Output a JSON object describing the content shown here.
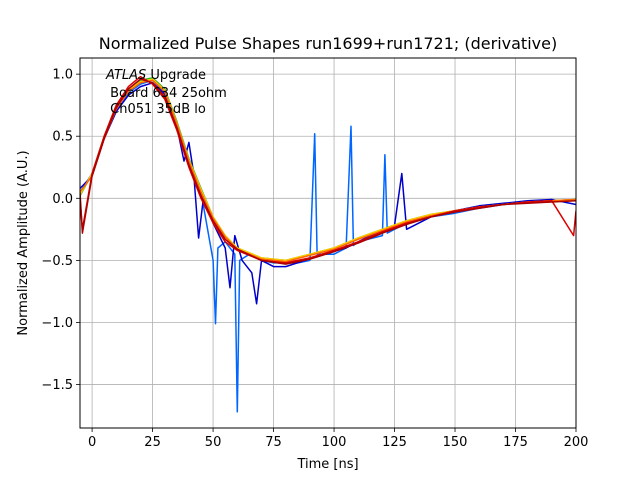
{
  "chart_data": {
    "type": "line",
    "title": "Normalized Pulse Shapes run1699+run1721; (derivative)",
    "xlabel": "Time [ns]",
    "ylabel": "Normalized Amplitude (A.U.)",
    "xlim": [
      -5,
      200
    ],
    "ylim": [
      -1.85,
      1.13
    ],
    "xticks": [
      0,
      25,
      50,
      75,
      100,
      125,
      150,
      175,
      200
    ],
    "yticks": [
      -1.5,
      -1.0,
      -0.5,
      0.0,
      0.5,
      1.0
    ],
    "xtick_labels": [
      "0",
      "25",
      "50",
      "75",
      "100",
      "125",
      "150",
      "175",
      "200"
    ],
    "ytick_labels": [
      "−1.5",
      "−1.0",
      "−0.5",
      "0.0",
      "0.5",
      "1.0"
    ],
    "grid": true,
    "annotation": {
      "line1_italic": "ATLAS",
      "line1_rest": " Upgrade",
      "line2": " Board 634 25ohm",
      "line3": " Ch051 35dB lo"
    },
    "series": [
      {
        "name": "pulse-blue-1",
        "color": "#0066ff",
        "values": [
          [
            -5,
            0.05
          ],
          [
            0,
            0.2
          ],
          [
            5,
            0.5
          ],
          [
            10,
            0.72
          ],
          [
            15,
            0.85
          ],
          [
            20,
            0.92
          ],
          [
            25,
            0.95
          ],
          [
            30,
            0.85
          ],
          [
            35,
            0.6
          ],
          [
            40,
            0.3
          ],
          [
            45,
            0.05
          ],
          [
            50,
            -0.5
          ],
          [
            51,
            -1.01
          ],
          [
            52,
            -0.4
          ],
          [
            55,
            -0.35
          ],
          [
            59,
            -0.45
          ],
          [
            60,
            -1.72
          ],
          [
            61,
            -0.5
          ],
          [
            65,
            -0.45
          ],
          [
            70,
            -0.5
          ],
          [
            75,
            -0.52
          ],
          [
            80,
            -0.52
          ],
          [
            85,
            -0.52
          ],
          [
            90,
            -0.5
          ],
          [
            92,
            0.52
          ],
          [
            93,
            -0.45
          ],
          [
            95,
            -0.45
          ],
          [
            100,
            -0.45
          ],
          [
            105,
            -0.4
          ],
          [
            107,
            0.58
          ],
          [
            108,
            -0.38
          ],
          [
            110,
            -0.35
          ],
          [
            120,
            -0.3
          ],
          [
            121,
            0.35
          ],
          [
            122,
            -0.28
          ],
          [
            125,
            -0.25
          ],
          [
            130,
            -0.2
          ],
          [
            140,
            -0.15
          ],
          [
            150,
            -0.12
          ],
          [
            160,
            -0.08
          ],
          [
            170,
            -0.05
          ],
          [
            180,
            -0.03
          ],
          [
            190,
            -0.02
          ],
          [
            200,
            -0.02
          ]
        ]
      },
      {
        "name": "pulse-dark-blue",
        "color": "#0000cc",
        "values": [
          [
            -5,
            0.08
          ],
          [
            0,
            0.18
          ],
          [
            5,
            0.48
          ],
          [
            10,
            0.7
          ],
          [
            15,
            0.83
          ],
          [
            20,
            0.9
          ],
          [
            25,
            0.93
          ],
          [
            30,
            0.84
          ],
          [
            35,
            0.58
          ],
          [
            38,
            0.3
          ],
          [
            40,
            0.45
          ],
          [
            42,
            0.2
          ],
          [
            44,
            -0.32
          ],
          [
            46,
            0.0
          ],
          [
            50,
            -0.2
          ],
          [
            55,
            -0.4
          ],
          [
            57,
            -0.72
          ],
          [
            59,
            -0.3
          ],
          [
            62,
            -0.5
          ],
          [
            66,
            -0.6
          ],
          [
            68,
            -0.85
          ],
          [
            70,
            -0.5
          ],
          [
            75,
            -0.55
          ],
          [
            80,
            -0.55
          ],
          [
            88,
            -0.5
          ],
          [
            95,
            -0.45
          ],
          [
            105,
            -0.4
          ],
          [
            115,
            -0.3
          ],
          [
            125,
            -0.22
          ],
          [
            128,
            0.2
          ],
          [
            130,
            -0.25
          ],
          [
            140,
            -0.15
          ],
          [
            150,
            -0.1
          ],
          [
            160,
            -0.06
          ],
          [
            170,
            -0.04
          ],
          [
            180,
            -0.02
          ],
          [
            190,
            -0.01
          ],
          [
            200,
            -0.05
          ]
        ]
      },
      {
        "name": "pulse-green",
        "color": "#22aa22",
        "values": [
          [
            -5,
            0.02
          ],
          [
            0,
            0.2
          ],
          [
            5,
            0.5
          ],
          [
            10,
            0.75
          ],
          [
            15,
            0.88
          ],
          [
            20,
            0.95
          ],
          [
            25,
            0.97
          ],
          [
            30,
            0.88
          ],
          [
            35,
            0.62
          ],
          [
            40,
            0.32
          ],
          [
            45,
            0.08
          ],
          [
            50,
            -0.15
          ],
          [
            55,
            -0.3
          ],
          [
            60,
            -0.4
          ],
          [
            70,
            -0.48
          ],
          [
            80,
            -0.5
          ],
          [
            90,
            -0.45
          ],
          [
            100,
            -0.4
          ],
          [
            110,
            -0.32
          ],
          [
            120,
            -0.25
          ],
          [
            130,
            -0.18
          ],
          [
            140,
            -0.13
          ],
          [
            150,
            -0.1
          ],
          [
            160,
            -0.07
          ],
          [
            170,
            -0.05
          ],
          [
            180,
            -0.03
          ],
          [
            190,
            -0.02
          ],
          [
            200,
            -0.01
          ]
        ]
      },
      {
        "name": "pulse-yellow",
        "color": "#ffcc00",
        "values": [
          [
            -5,
            0.03
          ],
          [
            0,
            0.2
          ],
          [
            5,
            0.5
          ],
          [
            10,
            0.74
          ],
          [
            15,
            0.87
          ],
          [
            20,
            0.94
          ],
          [
            25,
            0.96
          ],
          [
            30,
            0.87
          ],
          [
            35,
            0.61
          ],
          [
            40,
            0.31
          ],
          [
            45,
            0.07
          ],
          [
            50,
            -0.15
          ],
          [
            55,
            -0.3
          ],
          [
            60,
            -0.4
          ],
          [
            70,
            -0.48
          ],
          [
            80,
            -0.5
          ],
          [
            90,
            -0.45
          ],
          [
            100,
            -0.4
          ],
          [
            110,
            -0.32
          ],
          [
            120,
            -0.25
          ],
          [
            130,
            -0.18
          ],
          [
            140,
            -0.13
          ],
          [
            150,
            -0.1
          ],
          [
            160,
            -0.07
          ],
          [
            170,
            -0.05
          ],
          [
            180,
            -0.03
          ],
          [
            190,
            -0.02
          ],
          [
            200,
            -0.01
          ]
        ]
      },
      {
        "name": "pulse-orange",
        "color": "#ff6600",
        "values": [
          [
            -5,
            0.05
          ],
          [
            0,
            0.18
          ],
          [
            5,
            0.48
          ],
          [
            10,
            0.72
          ],
          [
            15,
            0.86
          ],
          [
            20,
            0.93
          ],
          [
            25,
            0.95
          ],
          [
            30,
            0.86
          ],
          [
            35,
            0.6
          ],
          [
            40,
            0.3
          ],
          [
            45,
            0.05
          ],
          [
            50,
            -0.16
          ],
          [
            55,
            -0.31
          ],
          [
            60,
            -0.41
          ],
          [
            70,
            -0.49
          ],
          [
            80,
            -0.51
          ],
          [
            90,
            -0.46
          ],
          [
            100,
            -0.41
          ],
          [
            110,
            -0.33
          ],
          [
            120,
            -0.26
          ],
          [
            130,
            -0.19
          ],
          [
            140,
            -0.14
          ],
          [
            150,
            -0.1
          ],
          [
            160,
            -0.07
          ],
          [
            170,
            -0.05
          ],
          [
            180,
            -0.03
          ],
          [
            190,
            -0.02
          ],
          [
            200,
            -0.01
          ]
        ]
      },
      {
        "name": "pulse-red",
        "color": "#dd0000",
        "values": [
          [
            -5,
            0.0
          ],
          [
            -4,
            -0.25
          ],
          [
            0,
            0.2
          ],
          [
            5,
            0.5
          ],
          [
            10,
            0.75
          ],
          [
            15,
            0.9
          ],
          [
            20,
            0.98
          ],
          [
            25,
            0.92
          ],
          [
            30,
            0.8
          ],
          [
            35,
            0.55
          ],
          [
            40,
            0.25
          ],
          [
            45,
            0.0
          ],
          [
            50,
            -0.2
          ],
          [
            55,
            -0.35
          ],
          [
            60,
            -0.42
          ],
          [
            70,
            -0.5
          ],
          [
            80,
            -0.52
          ],
          [
            90,
            -0.48
          ],
          [
            100,
            -0.42
          ],
          [
            110,
            -0.35
          ],
          [
            120,
            -0.27
          ],
          [
            130,
            -0.2
          ],
          [
            140,
            -0.15
          ],
          [
            150,
            -0.1
          ],
          [
            160,
            -0.07
          ],
          [
            170,
            -0.05
          ],
          [
            180,
            -0.03
          ],
          [
            190,
            -0.02
          ],
          [
            199,
            -0.3
          ],
          [
            200,
            -0.1
          ]
        ]
      },
      {
        "name": "pulse-dark-red",
        "color": "#aa0000",
        "values": [
          [
            -5,
            0.05
          ],
          [
            -4,
            -0.28
          ],
          [
            0,
            0.18
          ],
          [
            5,
            0.48
          ],
          [
            10,
            0.73
          ],
          [
            15,
            0.88
          ],
          [
            20,
            0.96
          ],
          [
            25,
            0.93
          ],
          [
            30,
            0.82
          ],
          [
            35,
            0.57
          ],
          [
            40,
            0.27
          ],
          [
            45,
            0.02
          ],
          [
            50,
            -0.18
          ],
          [
            55,
            -0.33
          ],
          [
            60,
            -0.41
          ],
          [
            70,
            -0.5
          ],
          [
            80,
            -0.53
          ],
          [
            90,
            -0.49
          ],
          [
            100,
            -0.43
          ],
          [
            110,
            -0.36
          ],
          [
            120,
            -0.28
          ],
          [
            130,
            -0.21
          ],
          [
            140,
            -0.15
          ],
          [
            150,
            -0.11
          ],
          [
            160,
            -0.08
          ],
          [
            170,
            -0.05
          ],
          [
            180,
            -0.04
          ],
          [
            190,
            -0.03
          ],
          [
            200,
            -0.02
          ]
        ]
      }
    ]
  }
}
